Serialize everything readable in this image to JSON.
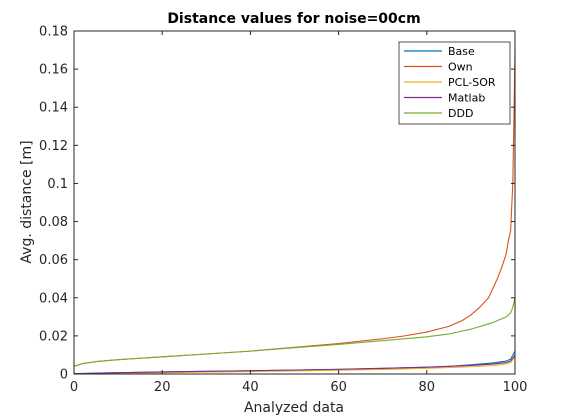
{
  "chart_data": {
    "type": "line",
    "title": "Distance values for noise=00cm",
    "xlabel": "Analyzed data",
    "ylabel": "Avg. distance [m]",
    "xlim": [
      0,
      100
    ],
    "ylim": [
      0,
      0.18
    ],
    "xticks": [
      0,
      20,
      40,
      60,
      80,
      100
    ],
    "yticks": [
      0,
      0.02,
      0.04,
      0.06,
      0.08,
      0.1,
      0.12,
      0.14,
      0.16,
      0.18
    ],
    "grid": false,
    "legend_position": "top-right",
    "series": [
      {
        "name": "Base",
        "color": "#0072BD",
        "points": [
          [
            0,
            0.0002
          ],
          [
            10,
            0.0007
          ],
          [
            20,
            0.0011
          ],
          [
            30,
            0.0014
          ],
          [
            40,
            0.0017
          ],
          [
            50,
            0.002
          ],
          [
            60,
            0.0024
          ],
          [
            70,
            0.0029
          ],
          [
            80,
            0.0036
          ],
          [
            85,
            0.004
          ],
          [
            90,
            0.0048
          ],
          [
            95,
            0.0058
          ],
          [
            98,
            0.0068
          ],
          [
            99,
            0.0078
          ],
          [
            100,
            0.012
          ]
        ]
      },
      {
        "name": "Own",
        "color": "#D95319",
        "points": [
          [
            0,
            0.004
          ],
          [
            2,
            0.0055
          ],
          [
            5,
            0.0065
          ],
          [
            10,
            0.0075
          ],
          [
            20,
            0.009
          ],
          [
            30,
            0.0105
          ],
          [
            40,
            0.012
          ],
          [
            50,
            0.014
          ],
          [
            60,
            0.016
          ],
          [
            70,
            0.0185
          ],
          [
            75,
            0.02
          ],
          [
            80,
            0.022
          ],
          [
            85,
            0.025
          ],
          [
            88,
            0.028
          ],
          [
            90,
            0.031
          ],
          [
            92,
            0.035
          ],
          [
            94,
            0.04
          ],
          [
            95,
            0.045
          ],
          [
            96,
            0.05
          ],
          [
            97,
            0.056
          ],
          [
            98,
            0.063
          ],
          [
            98.5,
            0.07
          ],
          [
            99,
            0.075
          ],
          [
            99.5,
            0.1
          ],
          [
            99.8,
            0.14
          ],
          [
            100,
            0.17
          ]
        ]
      },
      {
        "name": "PCL-SOR",
        "color": "#EDB120",
        "points": [
          [
            0,
            0.0001
          ],
          [
            10,
            0.0004
          ],
          [
            20,
            0.0007
          ],
          [
            30,
            0.001
          ],
          [
            40,
            0.0013
          ],
          [
            50,
            0.0016
          ],
          [
            60,
            0.002
          ],
          [
            70,
            0.0024
          ],
          [
            80,
            0.003
          ],
          [
            90,
            0.0038
          ],
          [
            95,
            0.0044
          ],
          [
            98,
            0.0052
          ],
          [
            99,
            0.006
          ],
          [
            100,
            0.009
          ]
        ]
      },
      {
        "name": "Matlab",
        "color": "#7E2F8E",
        "points": [
          [
            0,
            0.0002
          ],
          [
            10,
            0.0007
          ],
          [
            20,
            0.0011
          ],
          [
            30,
            0.0014
          ],
          [
            40,
            0.0017
          ],
          [
            50,
            0.0021
          ],
          [
            60,
            0.0025
          ],
          [
            70,
            0.003
          ],
          [
            80,
            0.0036
          ],
          [
            90,
            0.0045
          ],
          [
            95,
            0.0052
          ],
          [
            98,
            0.006
          ],
          [
            99,
            0.0068
          ],
          [
            100,
            0.01
          ]
        ]
      },
      {
        "name": "DDD",
        "color": "#77AC30",
        "points": [
          [
            0,
            0.004
          ],
          [
            2,
            0.0055
          ],
          [
            5,
            0.0065
          ],
          [
            10,
            0.0075
          ],
          [
            20,
            0.009
          ],
          [
            30,
            0.0105
          ],
          [
            40,
            0.012
          ],
          [
            50,
            0.0138
          ],
          [
            60,
            0.0155
          ],
          [
            70,
            0.0175
          ],
          [
            80,
            0.0195
          ],
          [
            85,
            0.021
          ],
          [
            90,
            0.0235
          ],
          [
            95,
            0.027
          ],
          [
            97,
            0.029
          ],
          [
            98,
            0.03
          ],
          [
            99,
            0.032
          ],
          [
            99.5,
            0.035
          ],
          [
            100,
            0.04
          ]
        ]
      }
    ]
  }
}
